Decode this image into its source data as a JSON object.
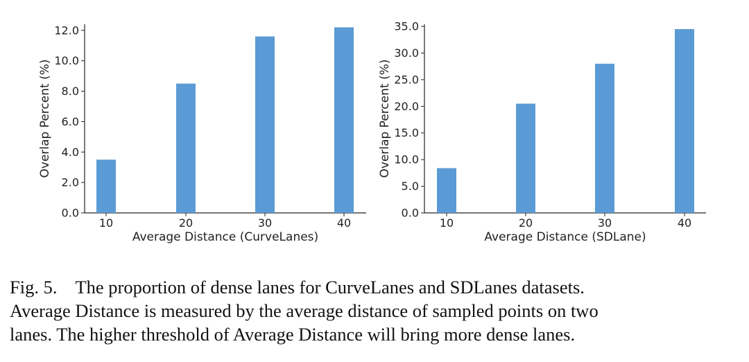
{
  "chart_data": [
    {
      "type": "bar",
      "categories": [
        "10",
        "20",
        "30",
        "40"
      ],
      "values": [
        3.5,
        8.5,
        11.6,
        12.2
      ],
      "xlabel": "Average Distance (CurveLanes)",
      "ylabel": "Overlap Percent (%)",
      "ylim": [
        0,
        12.4
      ],
      "yticks": [
        "0.0",
        "2.0",
        "4.0",
        "6.0",
        "8.0",
        "10.0",
        "12.0"
      ],
      "ytick_values": [
        0,
        2,
        4,
        6,
        8,
        10,
        12
      ],
      "color": "#5b9bd5",
      "grid": false
    },
    {
      "type": "bar",
      "categories": [
        "10",
        "20",
        "30",
        "40"
      ],
      "values": [
        8.4,
        20.5,
        28.0,
        34.5
      ],
      "xlabel": "Average Distance (SDLane)",
      "ylabel": "Overlap Percent (%)",
      "ylim": [
        0,
        35.4
      ],
      "yticks": [
        "0.0",
        "5.0",
        "10.0",
        "15.0",
        "20.0",
        "25.0",
        "30.0",
        "35.0"
      ],
      "ytick_values": [
        0,
        5,
        10,
        15,
        20,
        25,
        30,
        35
      ],
      "color": "#5b9bd5",
      "grid": false
    }
  ],
  "caption": {
    "fig_number": "Fig. 5.",
    "line1": "The proportion of dense lanes for CurveLanes and SDLanes datasets.",
    "line2": "Average Distance is measured by the average distance of sampled points on two",
    "line3": "lanes. The higher threshold of Average Distance will bring more dense lanes."
  }
}
